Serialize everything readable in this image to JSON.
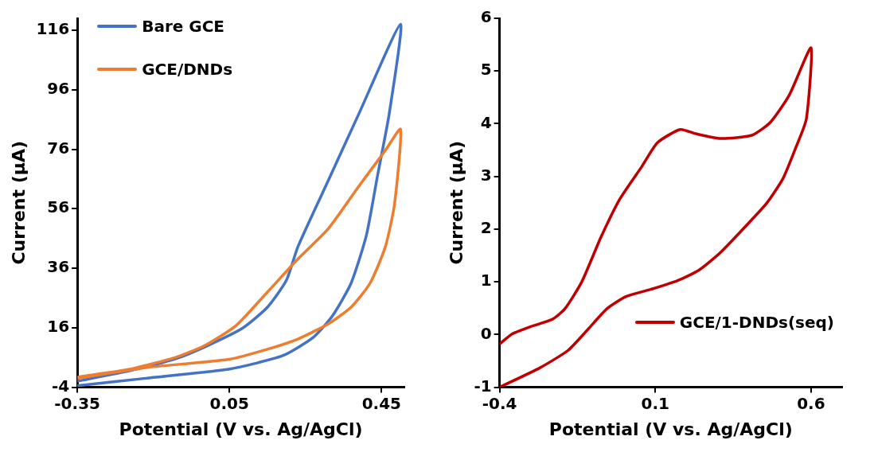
{
  "chart_data": [
    {
      "type": "line",
      "xlabel": "Potential (V vs. Ag/AgCl)",
      "ylabel": "Current (µA)",
      "xlim": [
        -0.35,
        0.51
      ],
      "xticks": [
        -0.35,
        0.05,
        0.45
      ],
      "ylim": [
        -4,
        120
      ],
      "yticks": [
        -4,
        16,
        36,
        56,
        76,
        96,
        116
      ],
      "grid": false,
      "legend": "top left",
      "marker": "none",
      "line_style": "solid",
      "series": [
        {
          "name": "Bare GCE",
          "color": "#4472c4",
          "x": [
            -0.35,
            -0.17,
            0.05,
            0.19,
            0.27,
            0.32,
            0.37,
            0.41,
            0.44,
            0.47,
            0.5,
            0.39,
            0.31,
            0.23,
            0.2,
            0.15,
            0.084,
            -0.012,
            -0.09,
            -0.21,
            -0.35
          ],
          "values": [
            -3.5,
            -1,
            2.1,
            6.6,
            12.7,
            19.8,
            31,
            47,
            67.5,
            87.8,
            118,
            87.8,
            65.5,
            43.2,
            32,
            22.9,
            15.8,
            9.7,
            5.6,
            1.6,
            -2
          ]
        },
        {
          "name": "GCE/DNDs",
          "color": "#ed7d31",
          "x": [
            -0.35,
            -0.17,
            0.05,
            0.148,
            0.23,
            0.31,
            0.37,
            0.42,
            0.46,
            0.484,
            0.5,
            0.46,
            0.39,
            0.31,
            0.23,
            0.15,
            0.068,
            -0.012,
            -0.09,
            -0.21,
            -0.35
          ],
          "values": [
            -1,
            2.6,
            5.4,
            8.7,
            12.2,
            17.3,
            22.9,
            31,
            43.2,
            57.4,
            82.7,
            75.6,
            63.5,
            49.3,
            39.1,
            28,
            16.8,
            10.2,
            6.1,
            2.1,
            -0.6
          ]
        }
      ]
    },
    {
      "type": "line",
      "xlabel": "Potential (V vs. Ag/AgCl)",
      "ylabel": "Current (µA)",
      "xlim": [
        -0.4,
        0.7
      ],
      "xticks": [
        -0.4,
        0.1,
        0.6
      ],
      "ylim": [
        -1,
        6
      ],
      "yticks": [
        -1,
        0,
        1,
        2,
        3,
        4,
        5,
        6
      ],
      "grid": false,
      "legend": "bottom right",
      "marker": "none",
      "line_style": "solid",
      "series": [
        {
          "name": "GCE/1-DNDs(seq)",
          "color": "#c00000",
          "x": [
            -0.4,
            -0.36,
            -0.3,
            -0.23,
            -0.19,
            -0.136,
            -0.075,
            -0.014,
            0.057,
            0.107,
            0.18,
            0.23,
            0.31,
            0.41,
            0.47,
            0.53,
            0.6,
            0.585,
            0.55,
            0.51,
            0.46,
            0.41,
            0.31,
            0.24,
            0.17,
            0.087,
            0.006,
            -0.055,
            -0.116,
            -0.18,
            -0.27,
            -0.4
          ],
          "values": [
            -0.18,
            0.01,
            0.15,
            0.29,
            0.49,
            1.0,
            1.84,
            2.57,
            3.19,
            3.64,
            3.89,
            3.81,
            3.72,
            3.78,
            4.03,
            4.54,
            5.44,
            4.09,
            3.53,
            2.96,
            2.51,
            2.18,
            1.56,
            1.22,
            1.02,
            0.86,
            0.72,
            0.49,
            0.1,
            -0.3,
            -0.63,
            -1.0
          ]
        }
      ]
    }
  ]
}
